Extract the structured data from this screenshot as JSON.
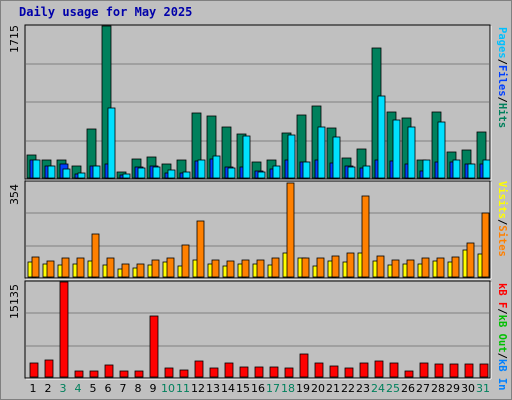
{
  "title": "Daily usage for May 2025",
  "colors": {
    "background": "#c0c0c0",
    "plot_background": "#c0c0c0",
    "hits": "#00805c",
    "files": "#0040ff",
    "pages": "#00e0ff",
    "visits": "#ffff00",
    "sites": "#ff8000",
    "kbin": "#0080ff",
    "kbout": "#00c000",
    "kbf": "#ff0000",
    "weekday_label": "#000000",
    "weekend_label": "#00805c"
  },
  "legend": {
    "top": [
      {
        "text": "Pages",
        "color": "#00c0ff"
      },
      {
        "text": "/",
        "color": "#000000"
      },
      {
        "text": "Files",
        "color": "#0040ff"
      },
      {
        "text": "/",
        "color": "#000000"
      },
      {
        "text": "Hits",
        "color": "#00805c"
      }
    ],
    "middle": [
      {
        "text": "Visits",
        "color": "#ffff00"
      },
      {
        "text": "/",
        "color": "#000000"
      },
      {
        "text": "Sites",
        "color": "#ff8000"
      }
    ],
    "bottom": [
      {
        "text": "kB F",
        "color": "#ff0000"
      },
      {
        "text": "/",
        "color": "#000000"
      },
      {
        "text": "kB Out",
        "color": "#00c000"
      },
      {
        "text": "/",
        "color": "#000000"
      },
      {
        "text": "kB In",
        "color": "#0080ff"
      }
    ]
  },
  "chart_data": [
    {
      "type": "bar",
      "panel": "hits-files-pages",
      "ymax_label": "1715",
      "ylim": [
        0,
        1715
      ],
      "categories": [
        "1",
        "2",
        "3",
        "4",
        "5",
        "6",
        "7",
        "8",
        "9",
        "10",
        "11",
        "12",
        "13",
        "14",
        "15",
        "16",
        "17",
        "18",
        "19",
        "20",
        "21",
        "22",
        "23",
        "24",
        "25",
        "26",
        "27",
        "28",
        "29",
        "30",
        "31"
      ],
      "weekend_days": [
        "3",
        "4",
        "10",
        "11",
        "17",
        "18",
        "24",
        "25",
        "31"
      ],
      "series": [
        {
          "name": "Hits",
          "values": [
            260,
            200,
            200,
            130,
            550,
            1715,
            70,
            220,
            240,
            160,
            200,
            730,
            700,
            570,
            500,
            180,
            200,
            510,
            710,
            810,
            560,
            230,
            330,
            1470,
            750,
            680,
            200,
            740,
            290,
            320,
            520
          ]
        },
        {
          "name": "Files",
          "values": [
            200,
            130,
            160,
            40,
            140,
            160,
            30,
            120,
            140,
            60,
            60,
            190,
            220,
            120,
            120,
            80,
            100,
            200,
            180,
            200,
            170,
            140,
            110,
            200,
            190,
            160,
            80,
            180,
            180,
            160,
            160
          ]
        },
        {
          "name": "Pages",
          "values": [
            200,
            130,
            100,
            60,
            140,
            790,
            40,
            110,
            120,
            90,
            70,
            200,
            250,
            110,
            470,
            70,
            140,
            490,
            180,
            580,
            460,
            120,
            130,
            930,
            660,
            580,
            200,
            630,
            200,
            160,
            200
          ]
        }
      ]
    },
    {
      "type": "bar",
      "panel": "visits-sites",
      "ymax_label": "354",
      "ylim": [
        0,
        354
      ],
      "categories": [
        "1",
        "2",
        "3",
        "4",
        "5",
        "6",
        "7",
        "8",
        "9",
        "10",
        "11",
        "12",
        "13",
        "14",
        "15",
        "16",
        "17",
        "18",
        "19",
        "20",
        "21",
        "22",
        "23",
        "24",
        "25",
        "26",
        "27",
        "28",
        "29",
        "30",
        "31"
      ],
      "series": [
        {
          "name": "Visits",
          "values": [
            55,
            50,
            45,
            50,
            60,
            45,
            30,
            35,
            45,
            55,
            40,
            65,
            50,
            40,
            50,
            50,
            45,
            90,
            70,
            40,
            60,
            55,
            90,
            60,
            45,
            50,
            50,
            60,
            55,
            100,
            85
          ]
        },
        {
          "name": "Sites",
          "values": [
            75,
            60,
            70,
            70,
            160,
            70,
            50,
            50,
            65,
            70,
            120,
            210,
            65,
            60,
            65,
            65,
            70,
            350,
            70,
            70,
            80,
            90,
            300,
            80,
            65,
            65,
            70,
            70,
            75,
            125,
            240
          ]
        }
      ]
    },
    {
      "type": "bar",
      "panel": "kb",
      "ymax_label": "15135",
      "ylim": [
        0,
        15135
      ],
      "categories": [
        "1",
        "2",
        "3",
        "4",
        "5",
        "6",
        "7",
        "8",
        "9",
        "10",
        "11",
        "12",
        "13",
        "14",
        "15",
        "16",
        "17",
        "18",
        "19",
        "20",
        "21",
        "22",
        "23",
        "24",
        "25",
        "26",
        "27",
        "28",
        "29",
        "30",
        "31"
      ],
      "series": [
        {
          "name": "kB F",
          "values": [
            2300,
            2700,
            15135,
            900,
            1000,
            1900,
            900,
            1000,
            9700,
            1500,
            1100,
            2500,
            1400,
            2300,
            1600,
            1600,
            1600,
            1400,
            3600,
            2200,
            1800,
            1500,
            2300,
            2600,
            2300,
            1000,
            2300,
            2000,
            2100,
            2000,
            2100
          ]
        }
      ]
    }
  ],
  "days": [
    "1",
    "2",
    "3",
    "4",
    "5",
    "6",
    "7",
    "8",
    "9",
    "10",
    "11",
    "12",
    "13",
    "14",
    "15",
    "16",
    "17",
    "18",
    "19",
    "20",
    "21",
    "22",
    "23",
    "24",
    "25",
    "26",
    "27",
    "28",
    "29",
    "30",
    "31"
  ]
}
